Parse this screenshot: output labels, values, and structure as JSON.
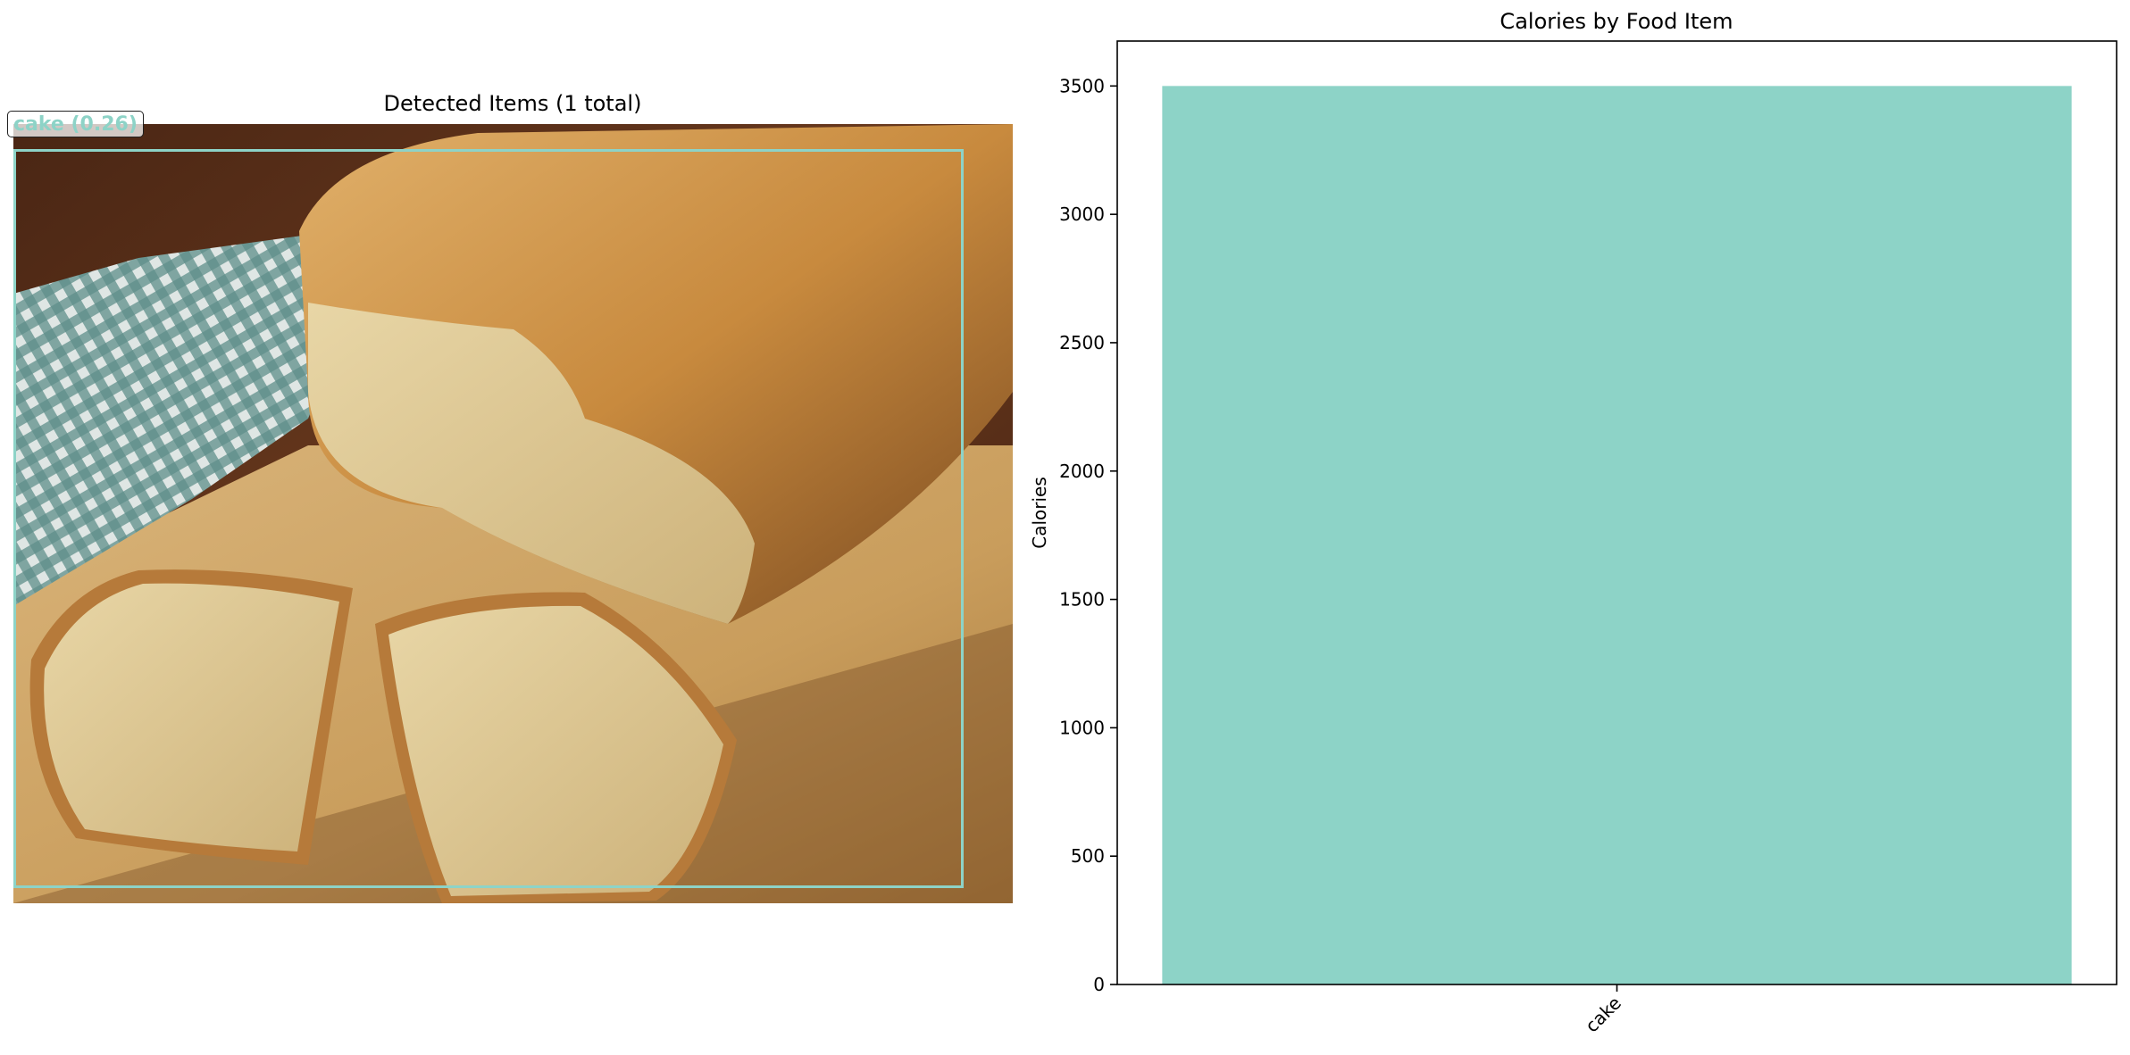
{
  "left_panel": {
    "title": "Detected Items (1 total)",
    "detection": {
      "label": "cake (0.26)",
      "color": "#8dd3c7"
    }
  },
  "chart_data": {
    "type": "bar",
    "title": "Calories by Food Item",
    "xlabel": "",
    "ylabel": "Calories",
    "categories": [
      "cake"
    ],
    "values": [
      3500
    ],
    "ylim": [
      0,
      3675
    ],
    "yticks": [
      0,
      500,
      1000,
      1500,
      2000,
      2500,
      3000,
      3500
    ],
    "bar_color": "#8dd3c7",
    "grid": false,
    "legend": "none"
  }
}
